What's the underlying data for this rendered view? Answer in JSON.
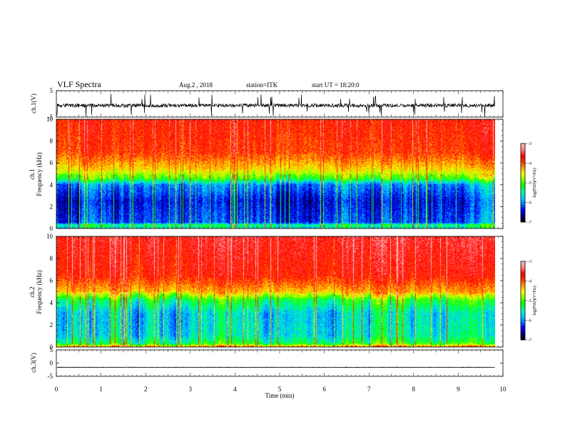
{
  "header": {
    "title": "VLF Spectra",
    "date": "Aug.2 , 2018",
    "station": "station=ITK",
    "start": "start UT = 18:20:0"
  },
  "colors": {
    "spectrogram_scale": [
      "#000000",
      "#000080",
      "#0000ff",
      "#0080ff",
      "#00d0ff",
      "#00ffa0",
      "#00ff00",
      "#80ff00",
      "#ffff00",
      "#ffa000",
      "#ff3000",
      "#ff0000",
      "#ff8080",
      "#ffc0c0"
    ],
    "waveform": "#000000",
    "axes": "#000000"
  },
  "chart_data": [
    {
      "type": "line",
      "panel": "ch1-waveform",
      "ylabel": "ch.1(V)",
      "ylim": [
        -5,
        5
      ],
      "yticks": [
        "5",
        "-5"
      ],
      "xlim": [
        0,
        10
      ],
      "x_end": 9.82,
      "baseline": -0.6,
      "noise_amplitude": 0.7,
      "spike_amplitude": 4.5
    },
    {
      "type": "heatmap",
      "panel": "ch1-spectrogram",
      "ylabel": "ch.1\nFrequency (kHz)",
      "ylim": [
        0,
        10
      ],
      "yticks": [
        "0",
        "2",
        "4",
        "6",
        "8",
        "10"
      ],
      "xlim": [
        0,
        10
      ],
      "x_end": 9.82,
      "z_label": "log(PSD)(V²/Hz)",
      "z_range": [
        -7,
        -3
      ],
      "z_ticks": [
        "-3",
        "-4",
        "-5",
        "-6",
        "-7"
      ],
      "profile": [
        {
          "f": 0,
          "z": -5.6
        },
        {
          "f": 0.3,
          "z": -5.3
        },
        {
          "f": 0.5,
          "z": -6.2
        },
        {
          "f": 2.5,
          "z": -6.4
        },
        {
          "f": 4.0,
          "z": -6.0
        },
        {
          "f": 4.6,
          "z": -5.0
        },
        {
          "f": 5.5,
          "z": -4.4
        },
        {
          "f": 7.0,
          "z": -3.9
        },
        {
          "f": 10,
          "z": -3.75
        }
      ]
    },
    {
      "type": "heatmap",
      "panel": "ch2-spectrogram",
      "ylabel": "ch.2\nFrequency (kHz)",
      "ylim": [
        0,
        10
      ],
      "yticks": [
        "0",
        "2",
        "4",
        "6",
        "8",
        "10"
      ],
      "xlim": [
        0,
        10
      ],
      "x_end": 9.82,
      "z_label": "log(PSD)(V²/Hz)",
      "z_range": [
        -7,
        -3
      ],
      "z_ticks": [
        "-3",
        "-4",
        "-5",
        "-6",
        "-7"
      ],
      "profile": [
        {
          "f": 0,
          "z": -4.2
        },
        {
          "f": 0.3,
          "z": -5.2
        },
        {
          "f": 1.0,
          "z": -5.6
        },
        {
          "f": 3.0,
          "z": -5.7
        },
        {
          "f": 4.2,
          "z": -5.2
        },
        {
          "f": 5.0,
          "z": -4.3
        },
        {
          "f": 6.5,
          "z": -3.75
        },
        {
          "f": 10,
          "z": -3.55
        }
      ]
    },
    {
      "type": "line",
      "panel": "ch3-waveform",
      "ylabel": "ch.3(V)",
      "ylim": [
        -5,
        5
      ],
      "yticks": [
        "5",
        "0",
        "-5"
      ],
      "xlim": [
        0,
        10
      ],
      "x_end": 9.82,
      "baseline": -1.6,
      "noise_amplitude": 0.08,
      "spike_amplitude": 0
    }
  ],
  "x_axis": {
    "label": "Time (min)",
    "ticks": [
      "0",
      "1",
      "2",
      "3",
      "4",
      "5",
      "6",
      "7",
      "8",
      "9",
      "10"
    ]
  }
}
